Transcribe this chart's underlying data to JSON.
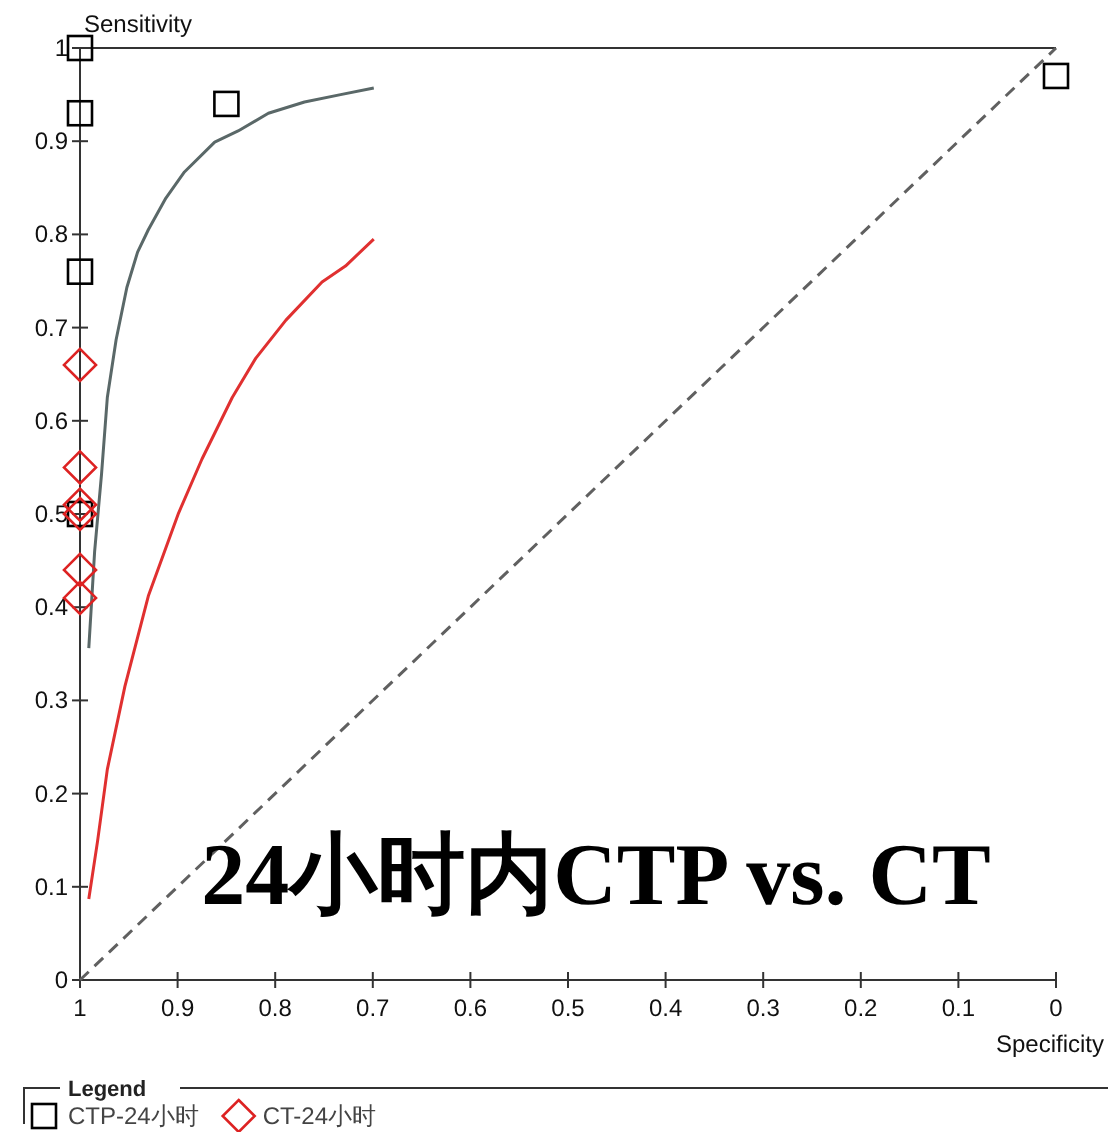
{
  "chart_data": {
    "type": "scatter",
    "xlabel": "Specificity",
    "ylabel": "Sensitivity",
    "legend_title": "Legend",
    "legend": "bottom",
    "annotations": [
      "24小时内CTP vs. CT"
    ],
    "xlim": [
      1,
      0
    ],
    "xticks": [
      1,
      0.9,
      0.8,
      0.7,
      0.6,
      0.5,
      0.4,
      0.3,
      0.2,
      0.1,
      0
    ],
    "ylim": [
      0,
      1
    ],
    "yticks": [
      0,
      0.1,
      0.2,
      0.3,
      0.4,
      0.5,
      0.6,
      0.7,
      0.8,
      0.9,
      1
    ],
    "series": [
      {
        "name": "CTP-24小时",
        "marker": "square",
        "color": "#000000",
        "x": [
          1,
          1,
          1,
          1,
          0.85,
          0
        ],
        "values": [
          1,
          0.93,
          0.76,
          0.5,
          0.94,
          0.97
        ]
      },
      {
        "name": "CT-24小时",
        "marker": "diamond",
        "color": "#dd2222",
        "x": [
          1,
          1,
          1,
          1,
          1,
          1
        ],
        "values": [
          0.66,
          0.55,
          0.51,
          0.5,
          0.44,
          0.41
        ]
      },
      {
        "type": "line",
        "color": "#5a6868",
        "x": [
          0.991,
          0.985,
          0.978,
          0.972,
          0.963,
          0.952,
          0.941,
          0.93,
          0.912,
          0.893,
          0.862,
          0.838,
          0.807,
          0.77,
          0.733,
          0.699
        ],
        "values": [
          0.356,
          0.46,
          0.542,
          0.625,
          0.687,
          0.743,
          0.781,
          0.805,
          0.839,
          0.867,
          0.899,
          0.911,
          0.93,
          0.942,
          0.95,
          0.957
        ]
      },
      {
        "type": "line",
        "color": "#e03030",
        "x": [
          0.991,
          0.982,
          0.972,
          0.954,
          0.93,
          0.899,
          0.875,
          0.844,
          0.82,
          0.789,
          0.752,
          0.728,
          0.699
        ],
        "values": [
          0.087,
          0.149,
          0.226,
          0.315,
          0.412,
          0.501,
          0.559,
          0.625,
          0.667,
          0.708,
          0.749,
          0.766,
          0.795
        ]
      },
      {
        "type": "line",
        "line_style": "dashed",
        "color": "#606060",
        "x": [
          1,
          0
        ],
        "values": [
          0,
          1
        ]
      }
    ]
  }
}
